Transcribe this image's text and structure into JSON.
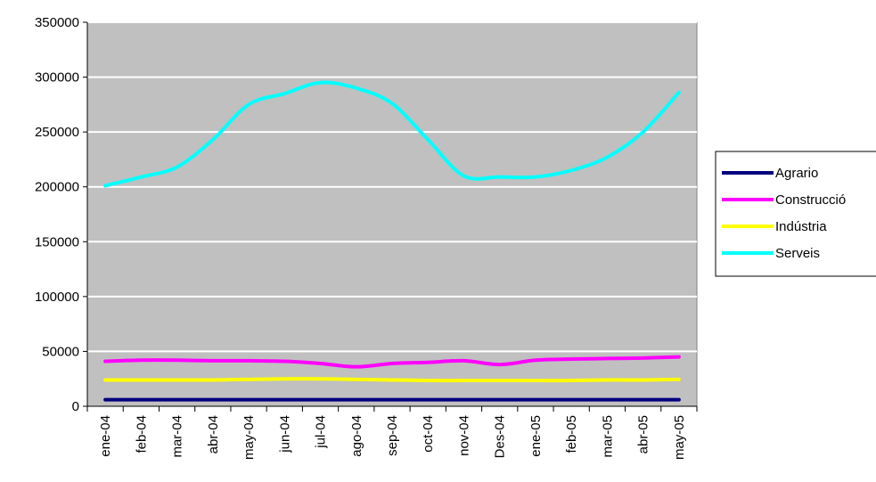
{
  "chart_data": {
    "type": "line",
    "categories": [
      "ene-04",
      "feb-04",
      "mar-04",
      "abr-04",
      "may-04",
      "jun-04",
      "jul-04",
      "ago-04",
      "sep-04",
      "oct-04",
      "nov-04",
      "Des-04",
      "ene-05",
      "feb-05",
      "mar-05",
      "abr-05",
      "may-05"
    ],
    "ylim": [
      0,
      350000
    ],
    "yticks": [
      0,
      50000,
      100000,
      150000,
      200000,
      250000,
      300000,
      350000
    ],
    "grid": true,
    "legend_position": "right",
    "plot_background": "#c0c0c0",
    "series": [
      {
        "name": "Agrario",
        "color": "#000080",
        "values": [
          6000,
          6000,
          6000,
          6000,
          6000,
          6000,
          6000,
          6000,
          6000,
          6000,
          6000,
          6000,
          6000,
          6000,
          6000,
          6000,
          6000
        ]
      },
      {
        "name": "Construcció",
        "color": "#ff00ff",
        "values": [
          41000,
          42000,
          42000,
          41500,
          41500,
          41000,
          39000,
          36000,
          39000,
          40000,
          41500,
          38000,
          42000,
          43000,
          43500,
          44000,
          45000
        ]
      },
      {
        "name": "Indústria",
        "color": "#ffff00",
        "values": [
          24000,
          24000,
          24000,
          24000,
          24500,
          25000,
          25000,
          24500,
          24000,
          23500,
          23500,
          23500,
          23500,
          23500,
          24000,
          24000,
          24500
        ]
      },
      {
        "name": "Serveis",
        "color": "#00ffff",
        "values": [
          201000,
          209000,
          218000,
          243000,
          275000,
          285000,
          295000,
          290000,
          276000,
          243000,
          210000,
          209000,
          209000,
          215000,
          227000,
          250000,
          286000
        ]
      }
    ]
  }
}
